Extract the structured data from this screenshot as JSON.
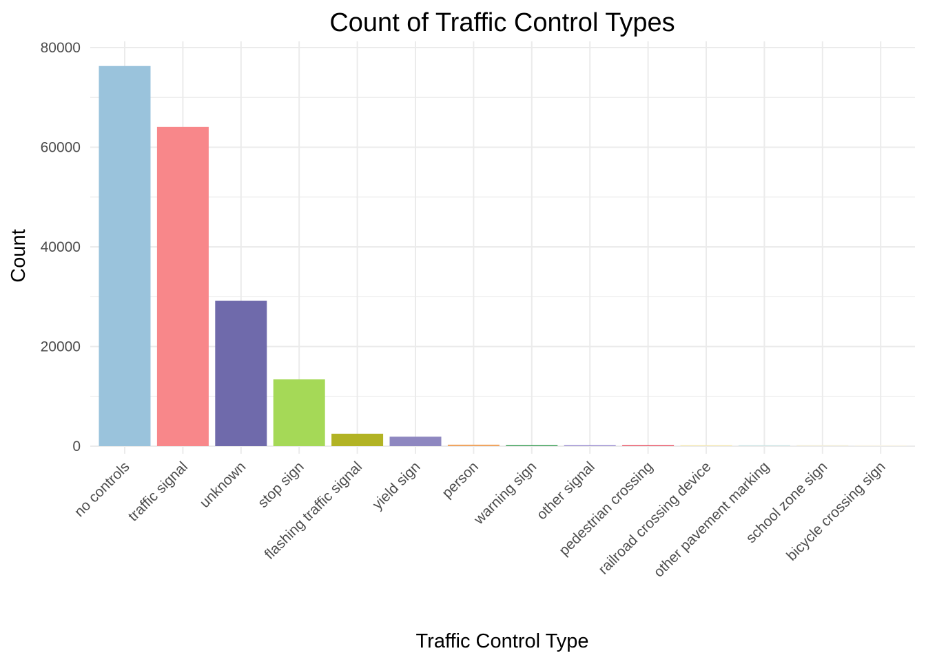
{
  "chart_data": {
    "type": "bar",
    "title": "Count of Traffic Control Types",
    "xlabel": "Traffic Control Type",
    "ylabel": "Count",
    "ylim": [
      0,
      80000
    ],
    "y_ticks": [
      0,
      20000,
      40000,
      60000,
      80000
    ],
    "y_tick_labels": [
      "0",
      "20000",
      "40000",
      "60000",
      "80000"
    ],
    "grid": true,
    "legend": "none",
    "categories": [
      "no controls",
      "traffic signal",
      "unknown",
      "stop sign",
      "flashing traffic signal",
      "yield sign",
      "person",
      "warning sign",
      "other signal",
      "pedestrian crossing",
      "railroad crossing device",
      "other pavement marking",
      "school zone sign",
      "bicycle crossing sign"
    ],
    "values": [
      76300,
      64100,
      29200,
      13400,
      2500,
      1900,
      300,
      150,
      120,
      100,
      60,
      40,
      15,
      10
    ],
    "colors": [
      "#9ac3dc",
      "#f8878a",
      "#6f6aab",
      "#a5d957",
      "#b2b324",
      "#8e87c0",
      "#f0a560",
      "#3a9e55",
      "#9b8ed0",
      "#e85566",
      "#f3e8b4",
      "#cfe6e5",
      "#f0ecd8",
      "#f7f3e6"
    ]
  }
}
